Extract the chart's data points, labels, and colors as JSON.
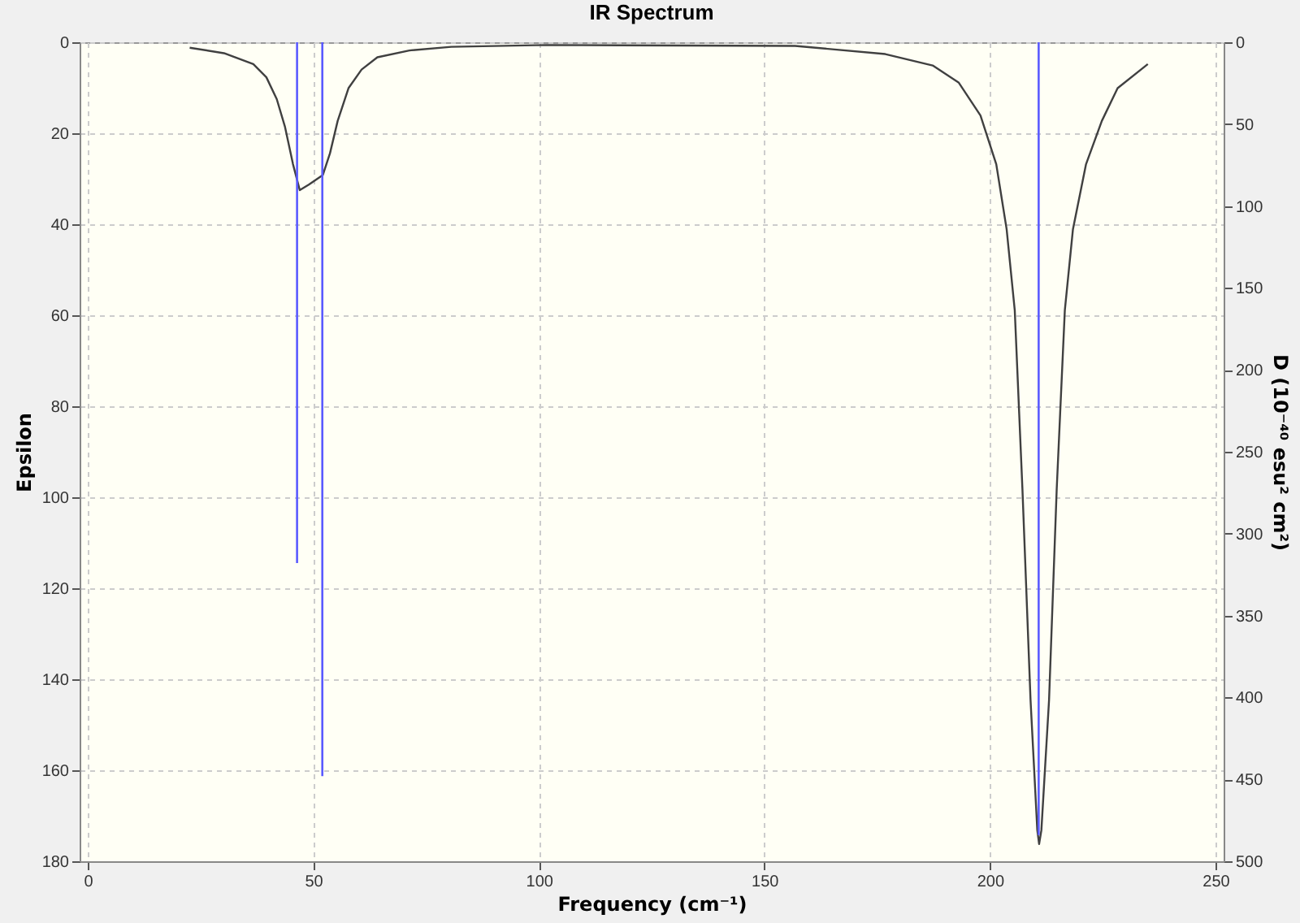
{
  "chart_data": {
    "type": "line",
    "title": "IR Spectrum",
    "xlabel": "Frequency (cm⁻¹)",
    "ylabel": "Epsilon",
    "y2label": "D (10⁻⁴⁰ esu² cm²)",
    "xlim": [
      0,
      250
    ],
    "xticks": [
      0,
      50,
      100,
      150,
      200,
      250
    ],
    "ylim": [
      180,
      0
    ],
    "yticks": [
      0,
      20,
      40,
      60,
      80,
      100,
      120,
      140,
      160,
      180
    ],
    "y2lim": [
      500,
      0
    ],
    "y2ticks": [
      0,
      50,
      100,
      150,
      200,
      250,
      300,
      350,
      400,
      450,
      500
    ],
    "grid": true,
    "marker": "none",
    "line_style": "solid",
    "series": [
      {
        "color": "#404040",
        "x": [
          22.6,
          30.2,
          36.7,
          39.6,
          41.9,
          43.7,
          45.5,
          47.0,
          49.0,
          52.1,
          53.7,
          55.4,
          57.8,
          60.7,
          64.2,
          71.3,
          80.6,
          101.7,
          156.8,
          176.8,
          187.3,
          193.1,
          197.9,
          201.4,
          203.7,
          205.5,
          207.2,
          209.0,
          210.5,
          210.9,
          211.4,
          213.1,
          214.8,
          216.6,
          218.4,
          221.3,
          224.8,
          228.3,
          235.0
        ],
        "values": [
          1.2,
          2.4,
          4.8,
          7.7,
          12.5,
          18.5,
          26.8,
          32.5,
          31.3,
          29.2,
          24.4,
          17.3,
          10.1,
          6.0,
          3.3,
          1.8,
          1.0,
          0.6,
          0.8,
          2.6,
          5.1,
          8.9,
          16.1,
          26.8,
          41.1,
          58.9,
          98.2,
          144.6,
          173.2,
          176.2,
          173.2,
          144.6,
          98.2,
          58.9,
          41.1,
          26.8,
          17.3,
          10.1,
          4.8
        ]
      },
      {
        "type": "bar",
        "axis": "y2",
        "color": "#5a5aff",
        "x": [
          46.4,
          52.0,
          210.8
        ],
        "values": [
          318,
          448,
          484
        ]
      }
    ]
  }
}
